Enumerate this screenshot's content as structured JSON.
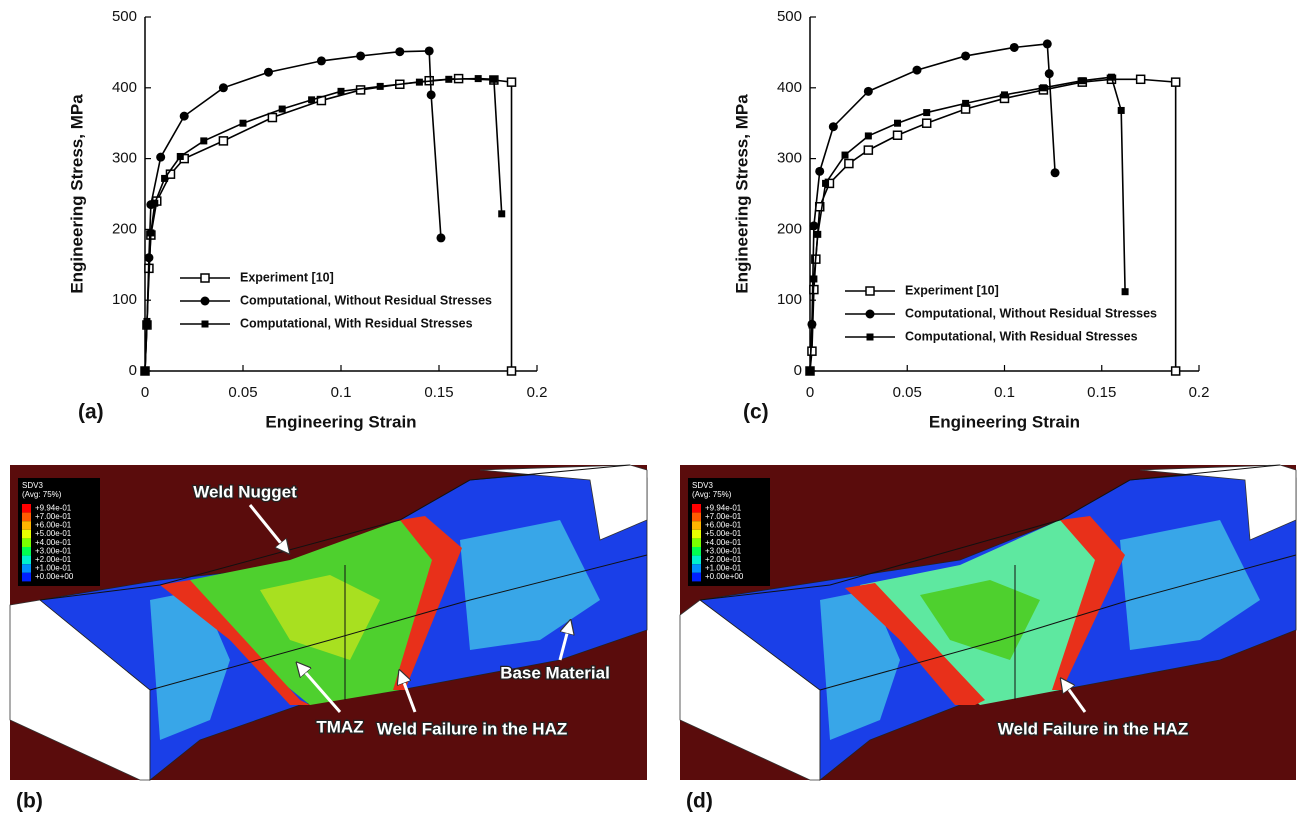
{
  "chart_data": [
    {
      "type": "line",
      "panel_label": "(a)",
      "x_label": "Engineering Strain",
      "y_label": "Engineering Stress, MPa",
      "xlim": [
        0,
        0.2
      ],
      "ylim": [
        0,
        500
      ],
      "xticks": [
        0,
        0.05,
        0.1,
        0.15,
        0.2
      ],
      "yticks": [
        0,
        100,
        200,
        300,
        400,
        500
      ],
      "legend": "lower center",
      "series": [
        {
          "name": "Experiment [10]",
          "marker": "open-square",
          "color": "#000000",
          "x": [
            0,
            0.001,
            0.002,
            0.003,
            0.006,
            0.013,
            0.02,
            0.04,
            0.065,
            0.09,
            0.11,
            0.13,
            0.145,
            0.16,
            0.178,
            0.187,
            0.187
          ],
          "values": [
            0,
            65,
            145,
            192,
            240,
            278,
            300,
            325,
            358,
            382,
            397,
            405,
            410,
            413,
            411,
            408,
            0
          ]
        },
        {
          "name": "Computational, Without Residual Stresses",
          "marker": "circle",
          "color": "#000000",
          "x": [
            0,
            0.001,
            0.002,
            0.003,
            0.008,
            0.02,
            0.04,
            0.063,
            0.09,
            0.11,
            0.13,
            0.145,
            0.146,
            0.151
          ],
          "values": [
            0,
            65,
            160,
            235,
            302,
            360,
            400,
            422,
            438,
            445,
            451,
            452,
            390,
            188
          ]
        },
        {
          "name": "Computational, With Residual Stresses",
          "marker": "square",
          "color": "#000000",
          "x": [
            0,
            0.001,
            0.003,
            0.005,
            0.01,
            0.018,
            0.03,
            0.05,
            0.07,
            0.085,
            0.1,
            0.12,
            0.14,
            0.155,
            0.17,
            0.178,
            0.182
          ],
          "values": [
            0,
            70,
            195,
            237,
            272,
            303,
            325,
            350,
            370,
            383,
            395,
            402,
            408,
            412,
            413,
            412,
            222
          ]
        }
      ]
    },
    {
      "type": "line",
      "panel_label": "(c)",
      "x_label": "Engineering Strain",
      "y_label": "Engineering Stress, MPa",
      "xlim": [
        0,
        0.2
      ],
      "ylim": [
        0,
        500
      ],
      "xticks": [
        0,
        0.05,
        0.1,
        0.15,
        0.2
      ],
      "yticks": [
        0,
        100,
        200,
        300,
        400,
        500
      ],
      "legend": "lower center",
      "series": [
        {
          "name": "Experiment [10]",
          "marker": "open-square",
          "color": "#000000",
          "x": [
            0,
            0.001,
            0.002,
            0.003,
            0.005,
            0.01,
            0.02,
            0.03,
            0.045,
            0.06,
            0.08,
            0.1,
            0.12,
            0.14,
            0.155,
            0.17,
            0.188,
            0.188
          ],
          "values": [
            0,
            28,
            115,
            158,
            232,
            265,
            293,
            312,
            333,
            350,
            370,
            385,
            397,
            408,
            412,
            412,
            408,
            0
          ]
        },
        {
          "name": "Computational, Without Residual Stresses",
          "marker": "circle",
          "color": "#000000",
          "x": [
            0,
            0.001,
            0.002,
            0.005,
            0.012,
            0.03,
            0.055,
            0.08,
            0.105,
            0.122,
            0.123,
            0.126
          ],
          "values": [
            0,
            66,
            205,
            282,
            345,
            395,
            425,
            445,
            457,
            462,
            420,
            280
          ]
        },
        {
          "name": "Computational, With Residual Stresses",
          "marker": "square",
          "color": "#000000",
          "x": [
            0,
            0.001,
            0.002,
            0.004,
            0.008,
            0.018,
            0.03,
            0.045,
            0.06,
            0.08,
            0.1,
            0.12,
            0.14,
            0.155,
            0.16,
            0.162
          ],
          "values": [
            0,
            65,
            130,
            193,
            265,
            305,
            332,
            350,
            365,
            378,
            390,
            400,
            410,
            415,
            368,
            112
          ]
        }
      ]
    }
  ],
  "contour_panels": [
    {
      "label": "(b)",
      "legend_title": "SDV3",
      "legend_subtitle": "(Avg: 75%)",
      "legend_ticks": [
        "+9.94e-01",
        "+7.00e-01",
        "+6.00e-01",
        "+5.00e-01",
        "+4.00e-01",
        "+3.00e-01",
        "+2.00e-01",
        "+1.00e-01",
        "+0.00e+00"
      ],
      "annotations": [
        "Weld Nugget",
        "TMAZ",
        "Weld Failure in the HAZ",
        "Base Material"
      ]
    },
    {
      "label": "(d)",
      "legend_title": "SDV3",
      "legend_subtitle": "(Avg: 75%)",
      "legend_ticks": [
        "+9.94e-01",
        "+7.00e-01",
        "+6.00e-01",
        "+5.00e-01",
        "+4.00e-01",
        "+3.00e-01",
        "+2.00e-01",
        "+1.00e-01",
        "+0.00e+00"
      ],
      "annotations": [
        "Weld Failure in the HAZ"
      ]
    }
  ]
}
